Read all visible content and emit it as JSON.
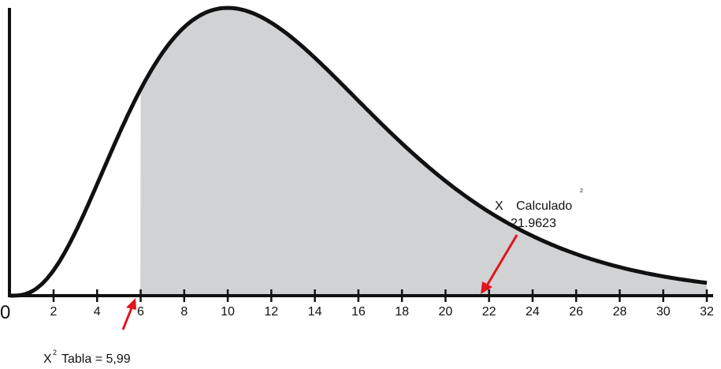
{
  "axis": {
    "ticks": [
      0,
      2,
      4,
      6,
      8,
      10,
      12,
      14,
      16,
      18,
      20,
      22,
      24,
      26,
      28,
      30,
      32
    ]
  },
  "annotations": {
    "calculated": {
      "symbol": "X",
      "label": "Calculado",
      "superscript": "2",
      "value": "21.9623"
    },
    "table": {
      "symbol": "X",
      "superscript": "2",
      "text": "Tabla = 5,99"
    }
  }
}
